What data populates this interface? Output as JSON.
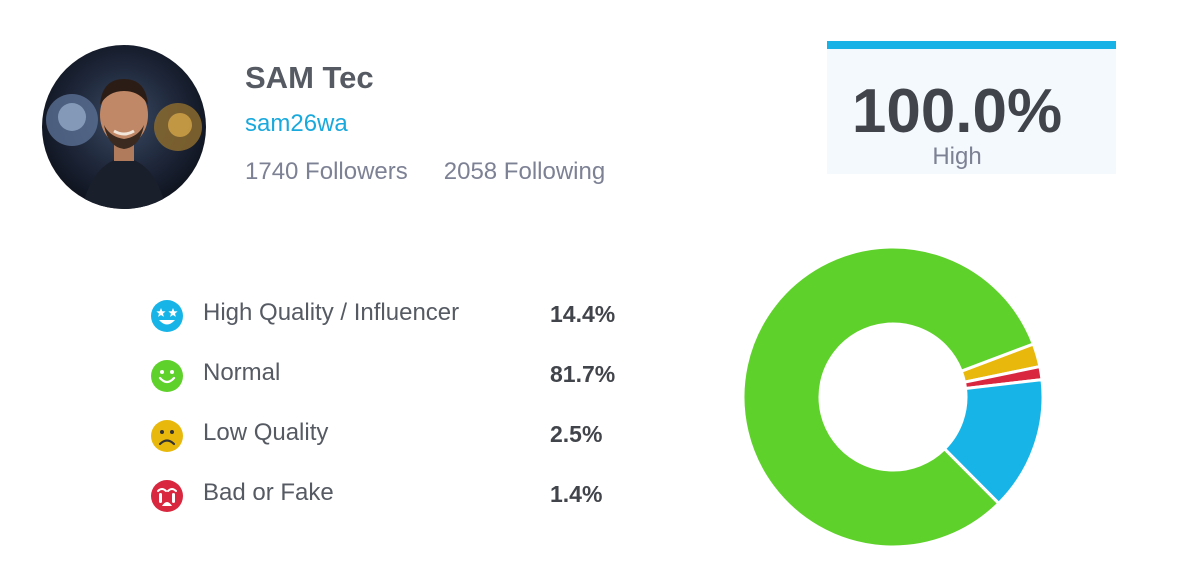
{
  "profile": {
    "name": "SAM Tec",
    "handle": "sam26wa",
    "followers": "1740 Followers",
    "following": "2058 Following",
    "avatar_icon": "profile-photo"
  },
  "score": {
    "value": "100.0%",
    "label": "High",
    "accent_color": "#19b2e6"
  },
  "breakdown": [
    {
      "label": "High Quality / Influencer",
      "value": "14.4%",
      "percent": 14.4,
      "color": "#17b4e8",
      "icon": "star-eyes-icon"
    },
    {
      "label": "Normal",
      "value": "81.7%",
      "percent": 81.7,
      "color": "#5fd12b",
      "icon": "smile-icon"
    },
    {
      "label": "Low Quality",
      "value": "2.5%",
      "percent": 2.5,
      "color": "#e8b90c",
      "icon": "frown-icon"
    },
    {
      "label": "Bad or Fake",
      "value": "1.4%",
      "percent": 1.4,
      "color": "#d8273f",
      "icon": "crying-icon"
    }
  ],
  "chart_data": {
    "type": "pie",
    "style": "donut",
    "categories": [
      "High Quality / Influencer",
      "Normal",
      "Low Quality",
      "Bad or Fake"
    ],
    "values": [
      14.4,
      81.7,
      2.5,
      1.4
    ],
    "colors": [
      "#17b4e8",
      "#5fd12b",
      "#e8b90c",
      "#d8273f"
    ],
    "title": "",
    "legend": "left"
  }
}
